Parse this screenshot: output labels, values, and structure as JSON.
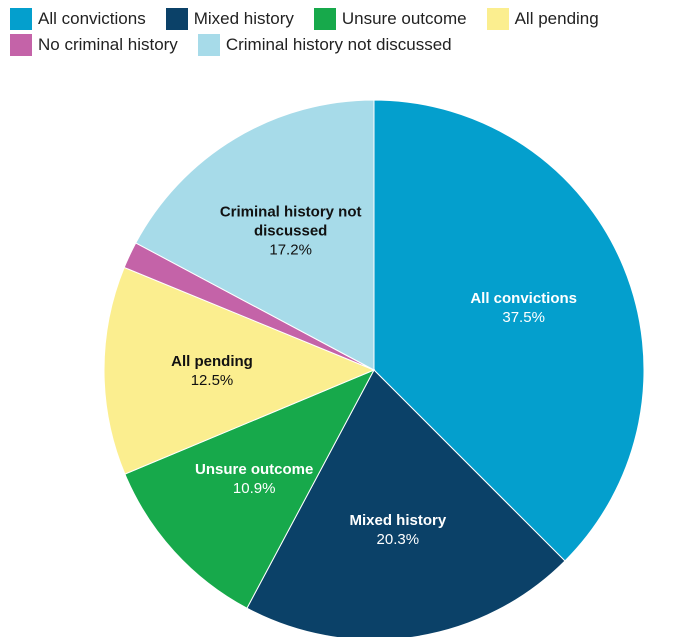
{
  "chart_data": {
    "type": "pie",
    "categories": [
      "All convictions",
      "Mixed history",
      "Unsure outcome",
      "All pending",
      "No criminal history",
      "Criminal history not discussed"
    ],
    "values": [
      37.5,
      20.3,
      10.9,
      12.5,
      1.6,
      17.2
    ],
    "value_labels": [
      "37.5%",
      "20.3%",
      "10.9%",
      "12.5%",
      null,
      "17.2%"
    ],
    "colors": [
      "#049fcd",
      "#0b4168",
      "#17a94b",
      "#fbee8f",
      "#c463a8",
      "#a7dbe9"
    ],
    "legend": "top"
  }
}
